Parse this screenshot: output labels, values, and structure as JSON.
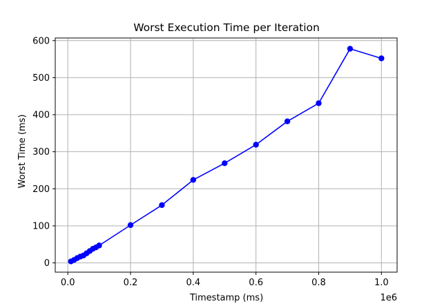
{
  "chart_data": {
    "type": "line",
    "title": "Worst Execution Time per Iteration",
    "xlabel": "Timestamp (ms)",
    "ylabel": "Worst Time (ms)",
    "x_offset_label": "1e6",
    "xlim": [
      -40000,
      1050000
    ],
    "ylim": [
      -25,
      607
    ],
    "x_ticks": [
      0,
      200000,
      400000,
      600000,
      800000,
      1000000
    ],
    "x_tick_labels": [
      "0.0",
      "0.2",
      "0.4",
      "0.6",
      "0.8",
      "1.0"
    ],
    "y_ticks": [
      0,
      100,
      200,
      300,
      400,
      500,
      600
    ],
    "y_tick_labels": [
      "0",
      "100",
      "200",
      "300",
      "400",
      "500",
      "600"
    ],
    "grid": true,
    "series": [
      {
        "color": "#0000ff",
        "marker": "circle",
        "x": [
          10000,
          20000,
          30000,
          40000,
          50000,
          60000,
          70000,
          80000,
          90000,
          100000,
          200000,
          300000,
          400000,
          500000,
          600000,
          700000,
          800000,
          900000,
          1000000
        ],
        "y": [
          4,
          8,
          13,
          17,
          20,
          26,
          32,
          38,
          42,
          47,
          102,
          156,
          224,
          269,
          319,
          382,
          431,
          578,
          552
        ]
      }
    ]
  }
}
